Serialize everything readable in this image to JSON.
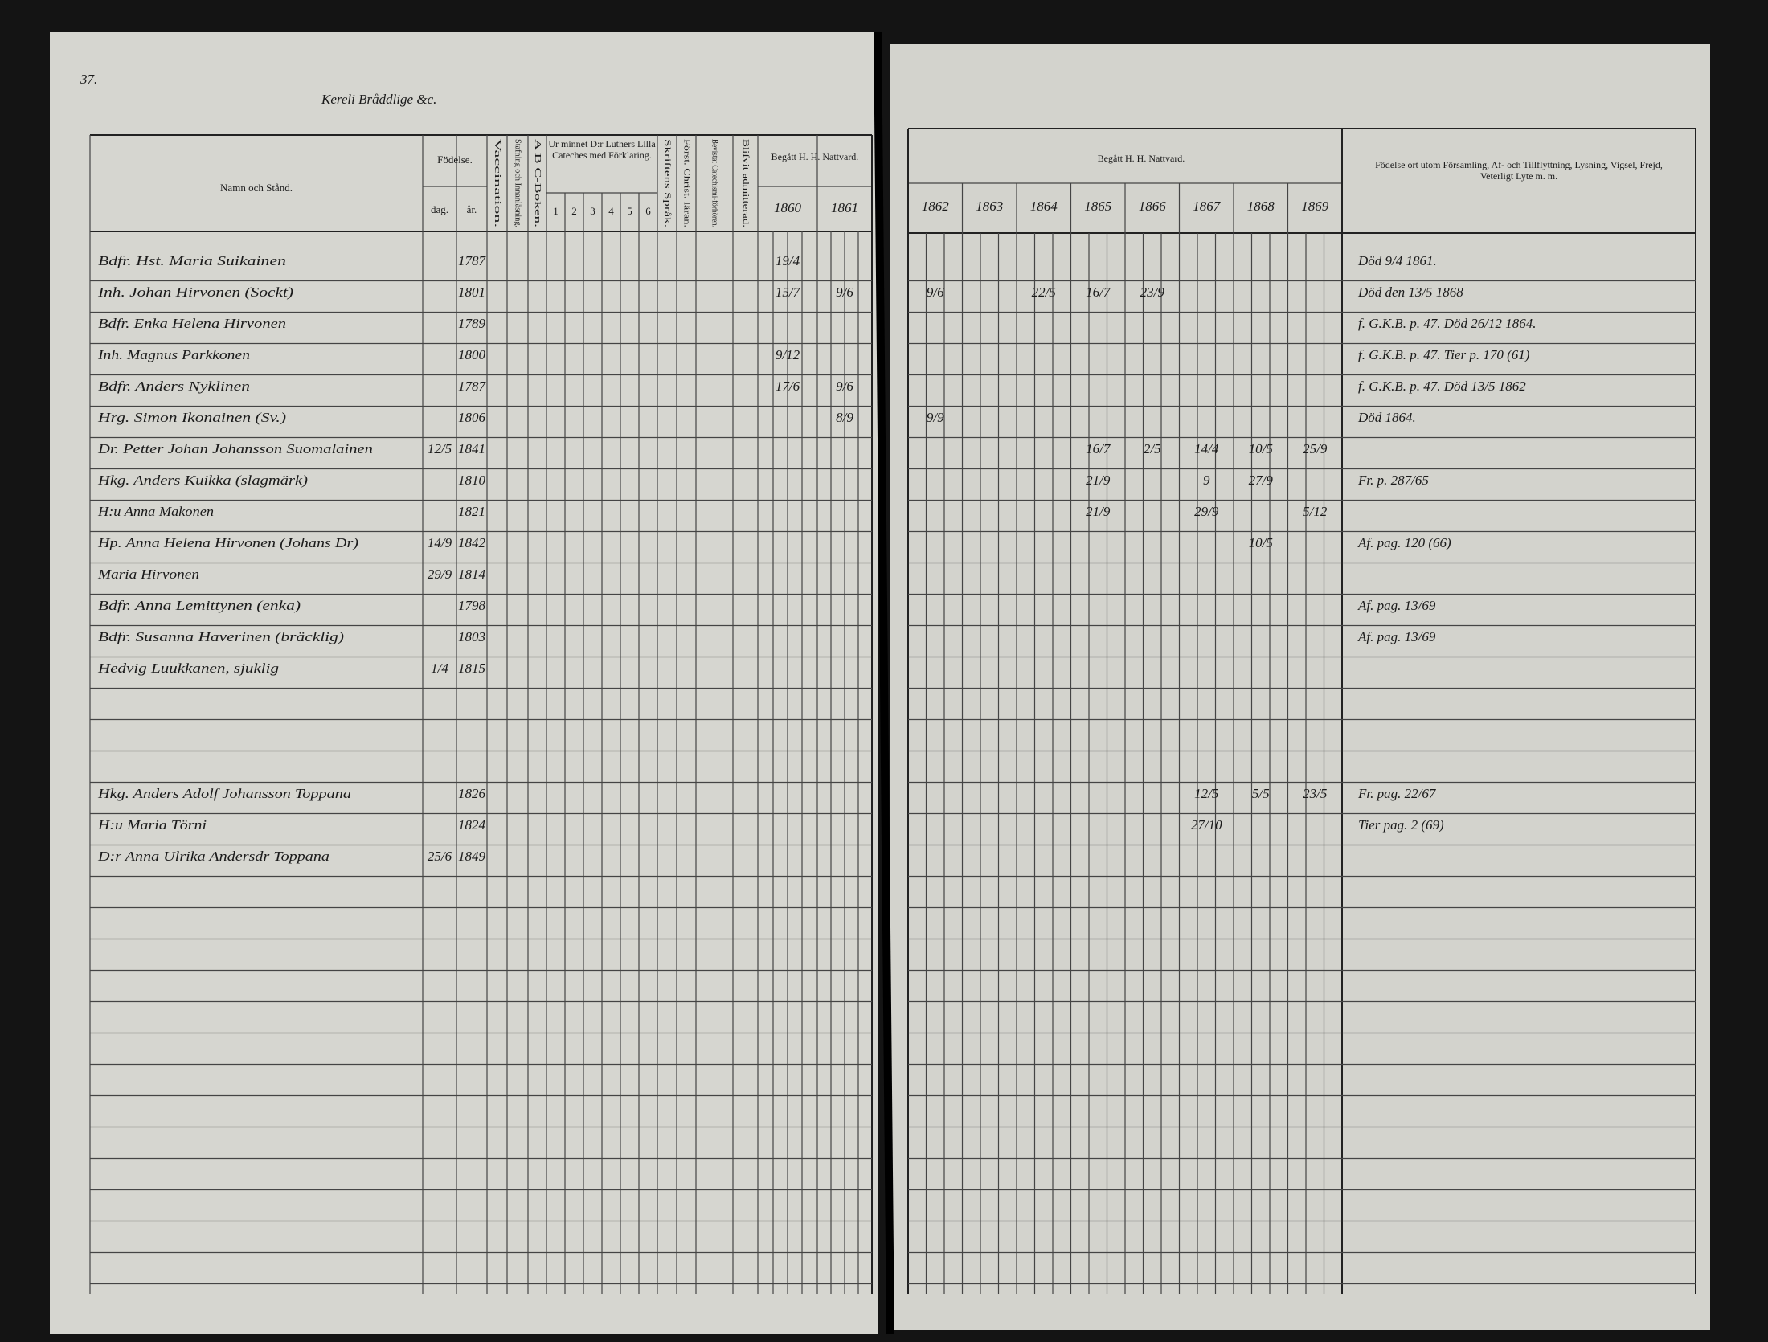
{
  "page_number": "37.",
  "title": "Kereli Bråddlige &c.",
  "left_headers": {
    "name": "Namn och Stånd.",
    "birth": "Födelse.",
    "day": "dag.",
    "year": "år.",
    "vaccination": "Vaccination.",
    "reading": "Stafning och Innanläsning.",
    "abc": "A B C-Boken.",
    "catechism": "Ur minnet D:r Luthers Lilla Cateches med Förklaring.",
    "catechism_parts": [
      "1",
      "2",
      "3",
      "4",
      "5",
      "6"
    ],
    "scripture": "Skriftens Språk.",
    "understanding": "Först. Christ. läran.",
    "attended": "Bevistat Catechismi-förhören.",
    "admitted": "Blifvit admitterad.",
    "communion": "Begått H. H. Nattvard.",
    "years": [
      "1860",
      "1861"
    ]
  },
  "right_headers": {
    "communion": "Begått H. H. Nattvard.",
    "years": [
      "1862",
      "1863",
      "1864",
      "1865",
      "1866",
      "1867",
      "1868",
      "1869"
    ],
    "notes": "Födelse ort utom Församling, Af- och Tillflyttning, Lysning, Vigsel, Frejd, Veterligt Lyte m. m."
  },
  "rows": [
    {
      "name": "Bdfr. Hst. Maria Suikainen",
      "year": "1787",
      "note": "Död 9/4 1861.",
      "communion": {
        "1860": "19/4"
      }
    },
    {
      "name": "Inh. Johan Hirvonen (Sockt)",
      "year": "1801",
      "note": "Död den 13/5 1868",
      "communion": {
        "1860": "15/7",
        "1861": "9/6",
        "1862": "9/6",
        "1864": "22/5",
        "1865": "16/7",
        "1866": "23/9"
      }
    },
    {
      "name": "Bdfr. Enka Helena Hirvonen",
      "year": "1789",
      "note": "f. G.K.B. p. 47. Död 26/12 1864."
    },
    {
      "name": "Inh. Magnus Parkkonen",
      "year": "1800",
      "note": "f. G.K.B. p. 47. Tier p. 170 (61)",
      "communion": {
        "1860": "9/12"
      }
    },
    {
      "name": "Bdfr. Anders Nyklinen",
      "year": "1787",
      "note": "f. G.K.B. p. 47. Död 13/5 1862",
      "communion": {
        "1860": "17/6",
        "1861": "9/6"
      }
    },
    {
      "name": "Hrg. Simon Ikonainen (Sv.)",
      "year": "1806",
      "note": "Död 1864.",
      "communion": {
        "1861": "8/9",
        "1862": "9/9"
      }
    },
    {
      "name": "Dr. Petter Johan Johansson Suomalainen",
      "day": "12/5",
      "year": "1841",
      "communion": {
        "1865": "16/7",
        "1866": "2/5",
        "1867": "14/4",
        "1868": "10/5",
        "1869": "25/9"
      }
    },
    {
      "name": "Hkg. Anders Kuikka (slagmärk)",
      "year": "1810",
      "note": "Fr. p. 287/65",
      "communion": {
        "1865": "21/9",
        "1867": "9",
        "1868": "27/9"
      }
    },
    {
      "name": "H:u Anna Makonen",
      "year": "1821",
      "communion": {
        "1865": "21/9",
        "1867": "29/9",
        "1869": "5/12"
      }
    },
    {
      "name": "Hp. Anna Helena Hirvonen (Johans Dr)",
      "day": "14/9",
      "year": "1842",
      "note": "Af. pag. 120 (66)",
      "communion": {
        "1868": "10/5"
      }
    },
    {
      "name": "Maria Hirvonen",
      "day": "29/9",
      "year": "1814"
    },
    {
      "name": "Bdfr. Anna Lemittynen (enka)",
      "year": "1798",
      "note": "Af. pag. 13/69"
    },
    {
      "name": "Bdfr. Susanna Haverinen (bräcklig)",
      "year": "1803",
      "note": "Af. pag. 13/69"
    },
    {
      "name": "Hedvig Luukkanen, sjuklig",
      "day": "1/4",
      "year": "1815"
    },
    {
      "name": "Hkg. Anders Adolf Johansson Toppana",
      "year": "1826",
      "note": "Fr. pag. 22/67",
      "communion": {
        "1867": "12/5",
        "1868": "5/5",
        "1869": "23/5"
      }
    },
    {
      "name": "H:u Maria Törni",
      "year": "1824",
      "note": "Tier pag. 2 (69)",
      "communion": {
        "1867": "27/10"
      }
    },
    {
      "name": "D:r Anna Ulrika Andersdr Toppana",
      "day": "25/6",
      "year": "1849"
    }
  ]
}
